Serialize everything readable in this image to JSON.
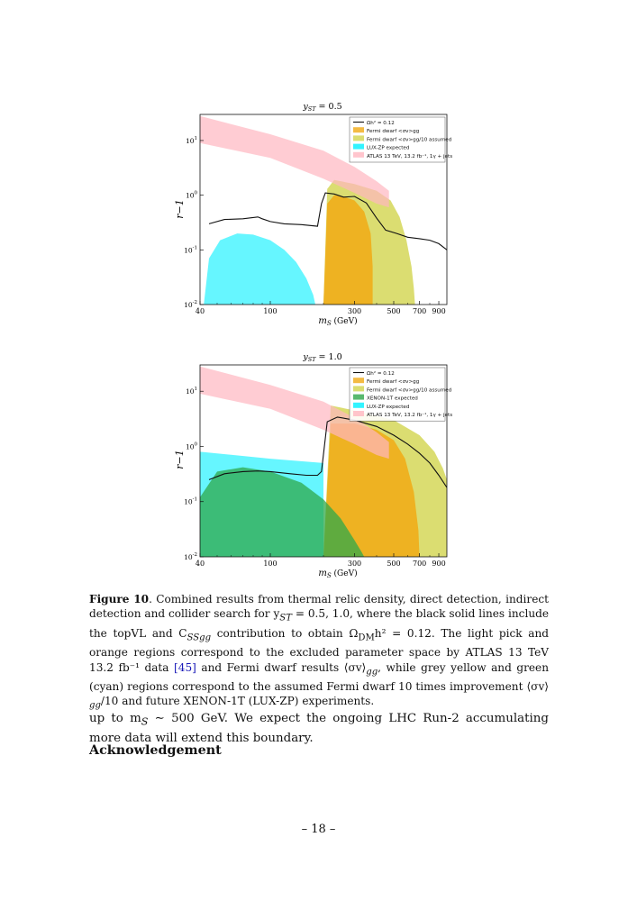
{
  "figures": [
    {
      "title": "y_ST = 0.5",
      "title_main": "y",
      "title_sub": "ST",
      "title_rest": " = 0.5",
      "xlabel_main": "m",
      "xlabel_sub": "S",
      "xlabel_rest": " (GeV)",
      "ylabel": "r−1",
      "x_ticks": [
        "40",
        "100",
        "300",
        "500",
        "700",
        "900"
      ],
      "y_ticks": [
        {
          "base": "10",
          "exp": "1"
        },
        {
          "base": "10",
          "exp": "0"
        },
        {
          "base": "10",
          "exp": "-1"
        },
        {
          "base": "10",
          "exp": "-2"
        }
      ],
      "legend": [
        {
          "label": "Ωh² = 0.12",
          "color": "#111111",
          "kind": "line"
        },
        {
          "label": "Fermi dwarf <σv>gg",
          "color": "#f1aa14",
          "kind": "box"
        },
        {
          "label": "Fermi dwarf <σv>gg/10 assumed",
          "color": "#d2d44e",
          "kind": "box"
        },
        {
          "label": "LUX-ZP expected",
          "color": "#00f0ff",
          "kind": "box"
        },
        {
          "label": "ATLAS 13 TeV, 13.2 fb⁻¹, 1γ + jets",
          "color": "#ffb6c1",
          "kind": "box"
        }
      ]
    },
    {
      "title": "y_ST = 1.0",
      "title_main": "y",
      "title_sub": "ST",
      "title_rest": " = 1.0",
      "xlabel_main": "m",
      "xlabel_sub": "S",
      "xlabel_rest": " (GeV)",
      "ylabel": "r−1",
      "x_ticks": [
        "40",
        "100",
        "300",
        "500",
        "700",
        "900"
      ],
      "y_ticks": [
        {
          "base": "10",
          "exp": "1"
        },
        {
          "base": "10",
          "exp": "0"
        },
        {
          "base": "10",
          "exp": "-1"
        },
        {
          "base": "10",
          "exp": "-2"
        }
      ],
      "legend": [
        {
          "label": "Ωh² = 0.12",
          "color": "#111111",
          "kind": "line"
        },
        {
          "label": "Fermi dwarf <σv>gg",
          "color": "#f1aa14",
          "kind": "box"
        },
        {
          "label": "Fermi dwarf <σv>gg/10 assumed",
          "color": "#d2d44e",
          "kind": "box"
        },
        {
          "label": "XENON-1T expected",
          "color": "#2fa84a",
          "kind": "box"
        },
        {
          "label": "LUX-ZP expected",
          "color": "#00f0ff",
          "kind": "box"
        },
        {
          "label": "ATLAS 13 TeV, 13.2 fb⁻¹, 1γ + jets",
          "color": "#ffb6c1",
          "kind": "box"
        }
      ]
    }
  ],
  "caption": {
    "label": "Figure 10",
    "text_1": ". Combined results from thermal relic density, direct detection, indirect detection and collider search for y",
    "sub_1": "ST",
    "text_2": " = 0.5, 1.0, where the black solid lines include the topVL and C",
    "sub_2": "SSgg",
    "text_3": " contribution to obtain Ω",
    "sub_3": "DM",
    "text_4": "h² = 0.12. The light pick and orange regions correspond to the excluded parameter space by ATLAS 13 TeV 13.2 fb⁻¹ data ",
    "cite": "[45]",
    "text_5": " and Fermi dwarf results ⟨σv⟩",
    "sub_4": "gg",
    "text_6": ", while grey yellow and green (cyan) regions correspond to the assumed Fermi dwarf 10 times improvement ⟨σv⟩",
    "sub_5": "gg",
    "text_7": "/10 and future XENON-1T (LUX-ZP) experiments."
  },
  "body": {
    "text_1": "up to m",
    "sub_1": "S",
    "text_2": " ∼ 500 GeV. We expect the ongoing LHC Run-2 accumulating more data will extend this boundary.",
    "ack": "Acknowledgement"
  },
  "page_number": "– 18 –",
  "chart_data": [
    {
      "type": "area",
      "title": "y_ST = 0.5",
      "xlabel": "m_S (GeV)",
      "ylabel": "r−1",
      "xscale": "log",
      "yscale": "log",
      "xlim": [
        40,
        1000
      ],
      "ylim": [
        0.01,
        30
      ],
      "legend_position": "top-right",
      "series": [
        {
          "name": "Ωh² = 0.12",
          "kind": "line",
          "x": [
            45,
            55,
            70,
            85,
            90,
            100,
            120,
            150,
            185,
            195,
            205,
            230,
            260,
            300,
            350,
            400,
            450,
            520,
            600,
            700,
            800,
            900,
            1000
          ],
          "y": [
            0.3,
            0.36,
            0.37,
            0.4,
            0.37,
            0.33,
            0.3,
            0.29,
            0.27,
            0.7,
            1.1,
            1.05,
            0.92,
            0.95,
            0.72,
            0.38,
            0.23,
            0.2,
            0.17,
            0.16,
            0.15,
            0.13,
            0.1
          ]
        },
        {
          "name": "Fermi dwarf <σv>gg",
          "x": [
            200,
            210,
            230,
            260,
            300,
            340,
            370,
            380,
            380,
            200
          ],
          "y": [
            0.01,
            0.7,
            1.0,
            0.95,
            0.8,
            0.5,
            0.2,
            0.05,
            0.01,
            0.01
          ]
        },
        {
          "name": "Fermi dwarf <σv>gg/10 assumed",
          "x": [
            200,
            210,
            230,
            300,
            400,
            480,
            540,
            590,
            630,
            650,
            660,
            660
          ],
          "y": [
            0.01,
            1.3,
            1.9,
            1.6,
            1.2,
            0.8,
            0.4,
            0.15,
            0.05,
            0.02,
            0.01,
            0.01
          ]
        },
        {
          "name": "LUX-ZP expected",
          "x": [
            42,
            45,
            52,
            65,
            80,
            100,
            120,
            140,
            160,
            175,
            180,
            180,
            42
          ],
          "y": [
            0.01,
            0.07,
            0.15,
            0.2,
            0.19,
            0.15,
            0.1,
            0.06,
            0.03,
            0.015,
            0.01,
            0.01,
            0.01
          ]
        },
        {
          "name": "ATLAS 13 TeV, 13.2 fb⁻¹, 1γ + jets",
          "x": [
            40,
            100,
            200,
            300,
            400,
            470,
            470,
            400,
            300,
            200,
            100,
            40
          ],
          "y": [
            28,
            13,
            6.5,
            3.3,
            1.8,
            1.2,
            0.6,
            0.7,
            1.1,
            2.0,
            4.8,
            9
          ]
        }
      ]
    },
    {
      "type": "area",
      "title": "y_ST = 1.0",
      "xlabel": "m_S (GeV)",
      "ylabel": "r−1",
      "xscale": "log",
      "yscale": "log",
      "xlim": [
        40,
        1000
      ],
      "ylim": [
        0.01,
        30
      ],
      "legend_position": "top-right",
      "series": [
        {
          "name": "Ωh² = 0.12",
          "kind": "line",
          "x": [
            45,
            55,
            70,
            85,
            100,
            130,
            160,
            185,
            195,
            210,
            240,
            300,
            400,
            500,
            600,
            700,
            800,
            900,
            1000
          ],
          "y": [
            0.25,
            0.32,
            0.35,
            0.36,
            0.35,
            0.32,
            0.3,
            0.3,
            0.35,
            2.8,
            3.4,
            3.0,
            2.3,
            1.6,
            1.1,
            0.75,
            0.5,
            0.3,
            0.18
          ]
        },
        {
          "name": "Fermi dwarf <σv>gg",
          "x": [
            200,
            220,
            300,
            400,
            500,
            580,
            650,
            690,
            700,
            200
          ],
          "y": [
            0.01,
            2.6,
            2.6,
            2.0,
            1.3,
            0.6,
            0.15,
            0.03,
            0.01,
            0.01
          ]
        },
        {
          "name": "Fermi dwarf <σv>gg/10 assumed",
          "x": [
            200,
            220,
            300,
            500,
            700,
            850,
            950,
            1000,
            1000,
            200
          ],
          "y": [
            0.01,
            5.5,
            4.5,
            3.0,
            1.6,
            0.8,
            0.4,
            0.25,
            0.01,
            0.01
          ]
        },
        {
          "name": "XENON-1T expected",
          "x": [
            40,
            50,
            70,
            100,
            150,
            200,
            250,
            300,
            330,
            340,
            340,
            40
          ],
          "y": [
            0.12,
            0.35,
            0.42,
            0.35,
            0.22,
            0.11,
            0.05,
            0.02,
            0.012,
            0.01,
            0.01,
            0.01
          ]
        },
        {
          "name": "LUX-ZP expected",
          "x": [
            40,
            100,
            200,
            200,
            40
          ],
          "y": [
            0.8,
            0.6,
            0.5,
            0.01,
            0.01
          ]
        },
        {
          "name": "ATLAS 13 TeV, 13.2 fb⁻¹, 1γ + jets",
          "x": [
            40,
            100,
            200,
            300,
            400,
            470,
            470,
            400,
            300,
            200,
            100,
            40
          ],
          "y": [
            28,
            13,
            6.5,
            3.3,
            1.8,
            1.2,
            0.6,
            0.7,
            1.1,
            2.0,
            4.8,
            9
          ]
        }
      ]
    }
  ]
}
